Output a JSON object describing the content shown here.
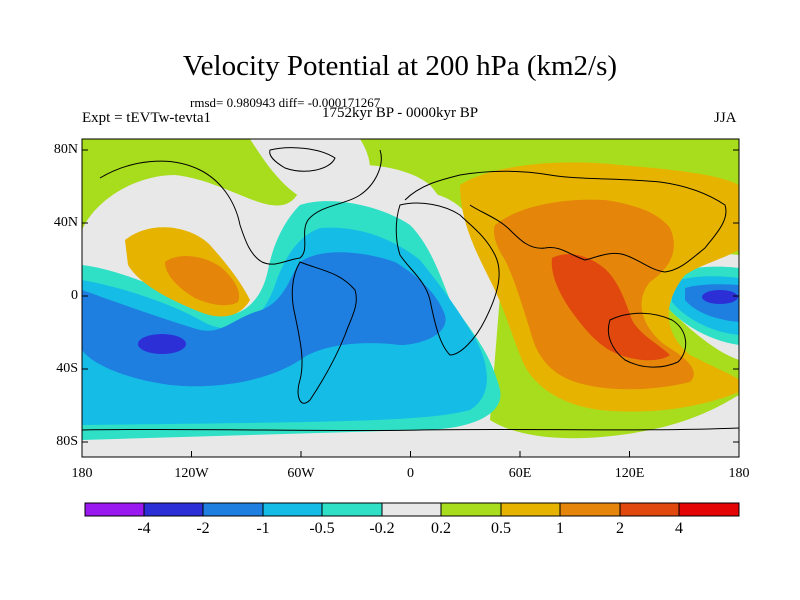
{
  "title": "Velocity Potential at 200 hPa (km2/s)",
  "stats": "rmsd= 0.980943 diff= -0.000171267",
  "expt": "Expt = tEVTw-tevta1",
  "period": "1752kyr BP - 0000kyr BP",
  "season": "JJA",
  "y_axis_labels": [
    "80N",
    "40N",
    "0",
    "40S",
    "80S"
  ],
  "x_axis_labels": [
    "180",
    "120W",
    "60W",
    "0",
    "60E",
    "120E",
    "180"
  ],
  "colorbar": {
    "labels": [
      "-4",
      "-2",
      "-1",
      "-0.5",
      "-0.2",
      "0.2",
      "0.5",
      "1",
      "2",
      "4"
    ],
    "colors": [
      "#9a19f0",
      "#2d2fd6",
      "#1e7fe0",
      "#15bde6",
      "#2fe0c7",
      "#e8e8e8",
      "#a8dd1d",
      "#e6b400",
      "#e5860b",
      "#e0480e",
      "#e40404"
    ]
  },
  "field_colors": {
    "le_-4": "#9a19f0",
    "-4_-2": "#2d2fd6",
    "-2_-1": "#1e7fe0",
    "-1_-0.5": "#15bde6",
    "-0.5_-0.2": "#2fe0c7",
    "-0.2_0.2": "#e8e8e8",
    "0.2_0.5": "#a8dd1d",
    "0.5_1": "#e6b400",
    "1_2": "#e5860b",
    "2_4": "#e0480e",
    "ge_4": "#e40404"
  }
}
